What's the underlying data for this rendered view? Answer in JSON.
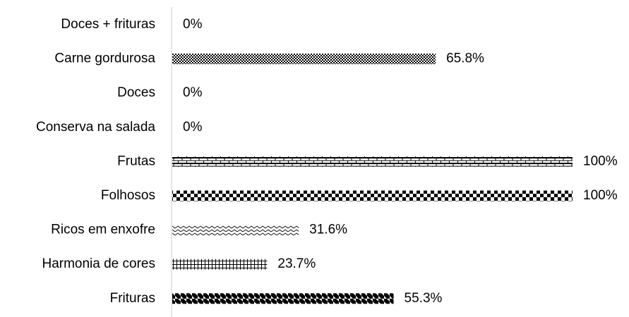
{
  "chart_data": {
    "type": "bar",
    "orientation": "horizontal",
    "title": "",
    "xlabel": "",
    "ylabel": "",
    "xlim": [
      0,
      100
    ],
    "grid": false,
    "legend": "none",
    "categories": [
      "Doces + frituras",
      "Carne gordurosa",
      "Doces",
      "Conserva na salada",
      "Frutas",
      "Folhosos",
      "Ricos em enxofre",
      "Harmonia de cores",
      "Frituras"
    ],
    "values": [
      0,
      65.8,
      0,
      0,
      100,
      100,
      31.6,
      23.7,
      55.3
    ],
    "value_labels": [
      "0%",
      "65.8%",
      "0%",
      "0%",
      "100%",
      "100%",
      "31.6%",
      "23.7%",
      "55.3%"
    ],
    "bar_patterns": [
      "none",
      "small-checker",
      "none",
      "none",
      "horizontal-brick",
      "large-checker",
      "zigzag",
      "small-grid",
      "diagonal-brick"
    ],
    "colors": {
      "bar_fill": "#000000",
      "bar_background": "#ffffff",
      "axis": "#d9d9d9",
      "text": "#000000"
    }
  }
}
